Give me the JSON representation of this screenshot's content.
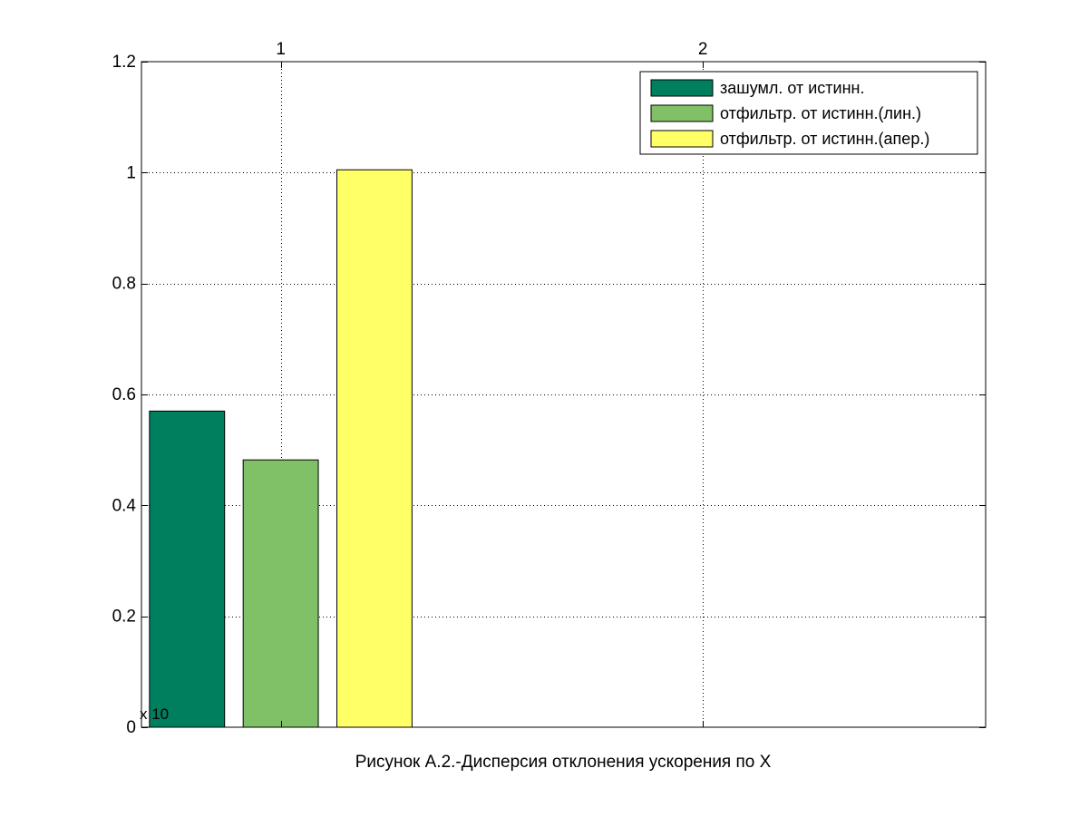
{
  "chart_data": {
    "type": "bar",
    "title": "",
    "xlabel": "Рисунок А.2.-Дисперсия отклонения ускорения по X",
    "ylabel": "",
    "y_multiplier_label": "x 10",
    "x_ticks": [
      "1",
      "2"
    ],
    "x_tick_values": [
      1,
      2
    ],
    "xlim": [
      0.67,
      2.67
    ],
    "ylim": [
      0,
      1.2
    ],
    "y_ticks": [
      "0",
      "0.2",
      "0.4",
      "0.6",
      "0.8",
      "1",
      "1.2"
    ],
    "y_tick_values": [
      0,
      0.2,
      0.4,
      0.6,
      0.8,
      1.0,
      1.2
    ],
    "grid": true,
    "grid_style": "dotted",
    "legend_position": "top-right",
    "bar_center_offsets": [
      -0.222,
      0,
      0.222
    ],
    "bar_width": 0.178,
    "series": [
      {
        "name": "зашумл. от истинн.",
        "color": "#007F5F",
        "x": [
          0.778
        ],
        "values": [
          0.57
        ]
      },
      {
        "name": "отфильтр. от истинн.(лин.)",
        "color": "#80C066",
        "x": [
          1.0
        ],
        "values": [
          0.482
        ]
      },
      {
        "name": "отфильтр. от истинн.(апер.)",
        "color": "#FFFF66",
        "x": [
          1.222
        ],
        "values": [
          1.005
        ]
      }
    ]
  }
}
